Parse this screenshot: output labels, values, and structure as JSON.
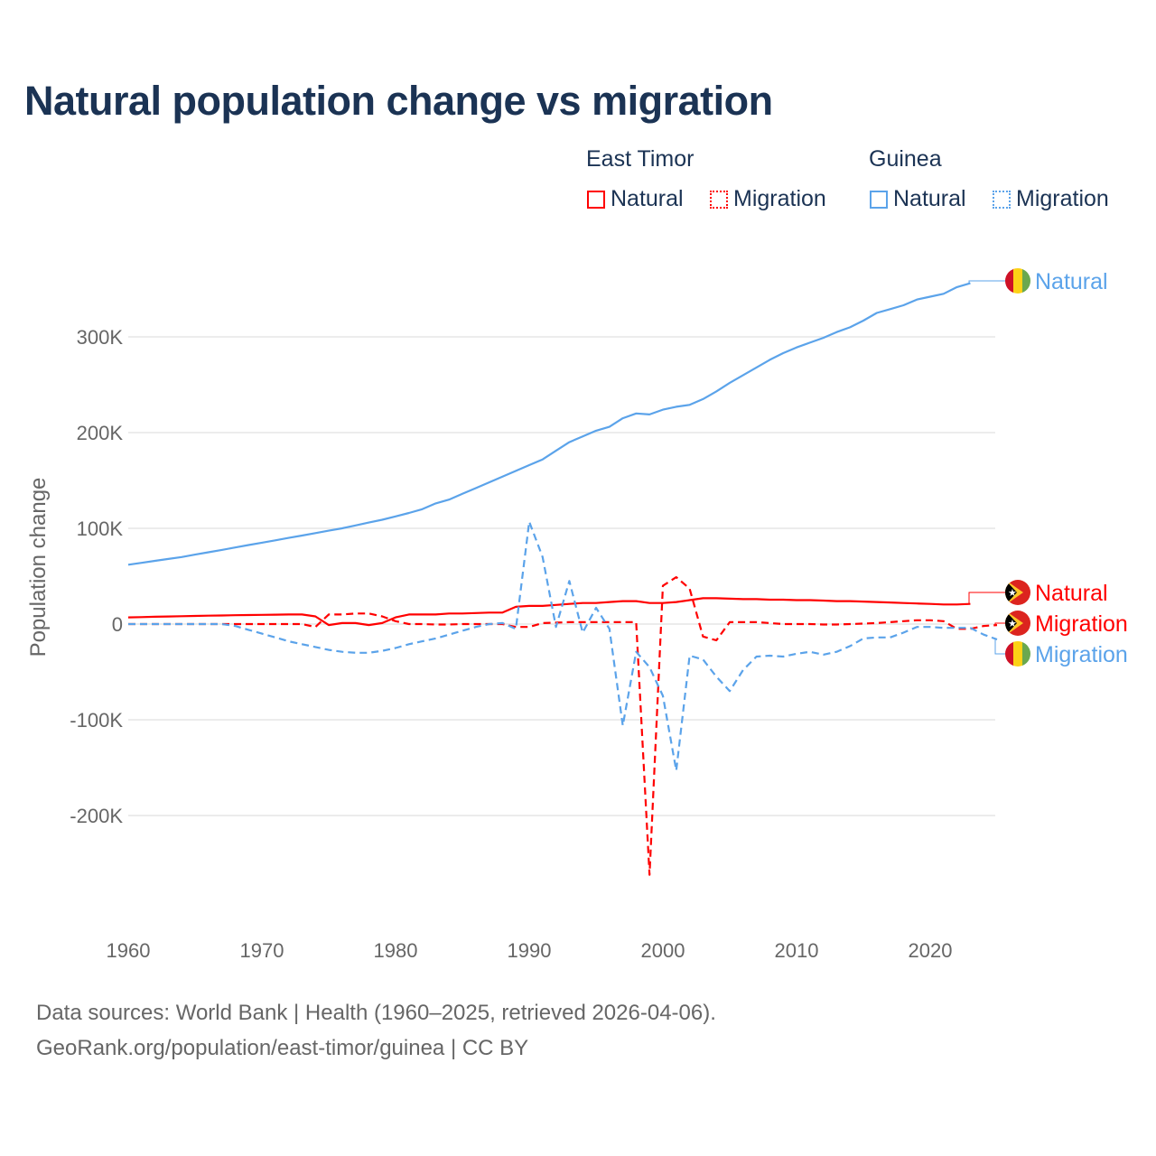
{
  "title": "Natural population change vs migration",
  "legend": {
    "groups": [
      {
        "name": "East Timor",
        "items": [
          {
            "label": "Natural",
            "style": "solid",
            "color": "#ff0000"
          },
          {
            "label": "Migration",
            "style": "dotted",
            "color": "#ff0000"
          }
        ]
      },
      {
        "name": "Guinea",
        "items": [
          {
            "label": "Natural",
            "style": "solid",
            "color": "#5ba3ea"
          },
          {
            "label": "Migration",
            "style": "dotted",
            "color": "#5ba3ea"
          }
        ]
      }
    ]
  },
  "footer": {
    "line1": "Data sources: World Bank | Health (1960–2025, retrieved 2026-04-06).",
    "line2": "GeoRank.org/population/east-timor/guinea | CC BY"
  },
  "chart_data": {
    "type": "line",
    "title": "Natural population change vs migration",
    "xlabel": "",
    "ylabel": "Population change",
    "xlim": [
      1960,
      2025
    ],
    "ylim": [
      -300000,
      360000
    ],
    "xticks": [
      1960,
      1970,
      1980,
      1990,
      2000,
      2010,
      2020
    ],
    "xtick_labels": [
      "1960",
      "1970",
      "1980",
      "1990",
      "2000",
      "2010",
      "2020"
    ],
    "yticks": [
      -200000,
      -100000,
      0,
      100000,
      200000,
      300000
    ],
    "ytick_labels": [
      "-200K",
      "-100K",
      "0",
      "100K",
      "200K",
      "300K"
    ],
    "grid": true,
    "legend_position": "top-right",
    "series": [
      {
        "name": "Guinea Natural",
        "country": "Guinea",
        "end_label": "Natural",
        "color": "#5ba3ea",
        "dash": false,
        "start_year": 1960,
        "values": [
          62000,
          64000,
          66000,
          68000,
          70000,
          72500,
          75000,
          77500,
          80000,
          82500,
          85000,
          87500,
          90000,
          92500,
          95000,
          97500,
          100000,
          103000,
          106000,
          109000,
          112500,
          116000,
          120000,
          126000,
          130000,
          136000,
          142000,
          148000,
          154000,
          160000,
          166000,
          172000,
          181000,
          190000,
          196000,
          202000,
          206000,
          215000,
          220000,
          219000,
          224000,
          227000,
          229000,
          235000,
          243000,
          252000,
          260000,
          268000,
          276000,
          283000,
          289000,
          294000,
          299000,
          305000,
          310000,
          317000,
          325000,
          329000,
          333000,
          339000,
          342000,
          345000,
          352000,
          356000
        ]
      },
      {
        "name": "East Timor Natural",
        "country": "East Timor",
        "end_label": "Natural",
        "color": "#ff0000",
        "dash": false,
        "start_year": 1960,
        "values": [
          7000,
          7300,
          7600,
          7900,
          8200,
          8500,
          8800,
          9000,
          9200,
          9400,
          9600,
          9800,
          10000,
          10000,
          8000,
          -1000,
          1000,
          1000,
          -1000,
          1000,
          7000,
          10000,
          10000,
          10000,
          11000,
          11000,
          11500,
          12000,
          12000,
          18000,
          19000,
          19000,
          20000,
          21000,
          22000,
          22000,
          23000,
          24000,
          24000,
          22000,
          22000,
          23000,
          25000,
          27000,
          27000,
          26500,
          26000,
          26000,
          25500,
          25500,
          25000,
          25000,
          24500,
          24000,
          24000,
          23500,
          23000,
          22500,
          22000,
          21500,
          21000,
          20500,
          20500,
          21000
        ]
      },
      {
        "name": "East Timor Migration",
        "country": "East Timor",
        "end_label": "Migration",
        "color": "#ff0000",
        "dash": true,
        "start_year": 1960,
        "values": [
          0,
          0,
          0,
          0,
          0,
          0,
          0,
          0,
          0,
          0,
          0,
          0,
          0,
          0,
          -3000,
          10000,
          10000,
          11000,
          11000,
          8000,
          3000,
          0,
          0,
          -500,
          -500,
          0,
          0,
          0,
          0,
          -3000,
          -3000,
          1000,
          1500,
          2000,
          2000,
          2000,
          2000,
          2000,
          2000,
          -262000,
          40000,
          49000,
          37000,
          -13000,
          -17000,
          2000,
          2000,
          2000,
          1000,
          0,
          0,
          0,
          -500,
          -500,
          0,
          500,
          1000,
          2000,
          3000,
          4000,
          4000,
          3000,
          -5000,
          -5000,
          -2000,
          -1000
        ]
      },
      {
        "name": "Guinea Migration",
        "country": "Guinea",
        "end_label": "Migration",
        "color": "#5ba3ea",
        "dash": true,
        "start_year": 1960,
        "values": [
          0,
          0,
          0,
          0,
          0,
          0,
          0,
          0,
          -2000,
          -6000,
          -10000,
          -14000,
          -18000,
          -21000,
          -24000,
          -27000,
          -29000,
          -30000,
          -30000,
          -28000,
          -25000,
          -21000,
          -18000,
          -15000,
          -11000,
          -7000,
          -3000,
          0,
          1000,
          -5000,
          107000,
          70000,
          -3000,
          45000,
          -9000,
          17000,
          -5000,
          -106000,
          -29000,
          -45000,
          -75000,
          -153000,
          -33000,
          -37000,
          -55000,
          -70000,
          -48000,
          -34000,
          -33000,
          -34000,
          -31000,
          -29000,
          -32000,
          -29000,
          -23000,
          -15000,
          -14000,
          -14000,
          -9000,
          -3000,
          -3000,
          -4000,
          -4000,
          -4000,
          -11000,
          -16000
        ]
      }
    ]
  }
}
